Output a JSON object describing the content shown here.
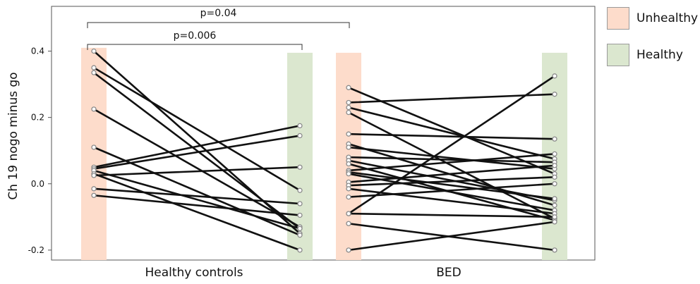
{
  "chart_data": {
    "type": "line",
    "ylabel": "Ch 19 nogo minus go",
    "xlabel": "",
    "ylim": [
      -0.23,
      0.535
    ],
    "yticks": [
      -0.2,
      0.0,
      0.2,
      0.4
    ],
    "ytick_labels": [
      "-0.2",
      "0.0",
      "0.2",
      "0.4"
    ],
    "groups": [
      {
        "label": "Healthy controls",
        "unhealthy_bar": 0.41,
        "healthy_bar": 0.395,
        "pairs": [
          [
            0.4,
            -0.15
          ],
          [
            0.35,
            -0.02
          ],
          [
            0.335,
            -0.135
          ],
          [
            0.225,
            -0.13
          ],
          [
            0.11,
            -0.155
          ],
          [
            0.05,
            0.175
          ],
          [
            0.045,
            0.145
          ],
          [
            0.04,
            -0.135
          ],
          [
            0.03,
            -0.2
          ],
          [
            -0.015,
            -0.06
          ],
          [
            0.025,
            0.05
          ],
          [
            -0.035,
            -0.095
          ]
        ]
      },
      {
        "label": "BED",
        "unhealthy_bar": 0.395,
        "healthy_bar": 0.395,
        "pairs": [
          [
            0.29,
            0.03
          ],
          [
            0.245,
            0.27
          ],
          [
            0.23,
            0.075
          ],
          [
            0.215,
            -0.105
          ],
          [
            0.15,
            0.135
          ],
          [
            0.12,
            -0.065
          ],
          [
            0.11,
            0.045
          ],
          [
            0.08,
            0.065
          ],
          [
            0.07,
            -0.05
          ],
          [
            0.06,
            -0.11
          ],
          [
            0.04,
            0.09
          ],
          [
            0.035,
            -0.045
          ],
          [
            0.03,
            -0.08
          ],
          [
            0.005,
            0.055
          ],
          [
            -0.005,
            0.02
          ],
          [
            -0.015,
            -0.09
          ],
          [
            -0.04,
            0.0
          ],
          [
            -0.09,
            0.325
          ],
          [
            -0.09,
            -0.1
          ],
          [
            -0.12,
            -0.2
          ],
          [
            -0.2,
            -0.115
          ]
        ]
      }
    ],
    "annotations": [
      {
        "text": "p=0.04"
      },
      {
        "text": "p=0.006"
      }
    ],
    "legend": {
      "position": "right",
      "items": [
        {
          "label": "Unhealthy",
          "color": "#fddccb"
        },
        {
          "label": "Healthy",
          "color": "#dbe7cf"
        }
      ]
    },
    "colors": {
      "unhealthy_bar": "#fddccb",
      "healthy_bar": "#dbe7cf",
      "line": "#111111",
      "point_edge": "#8a8a8a"
    }
  }
}
